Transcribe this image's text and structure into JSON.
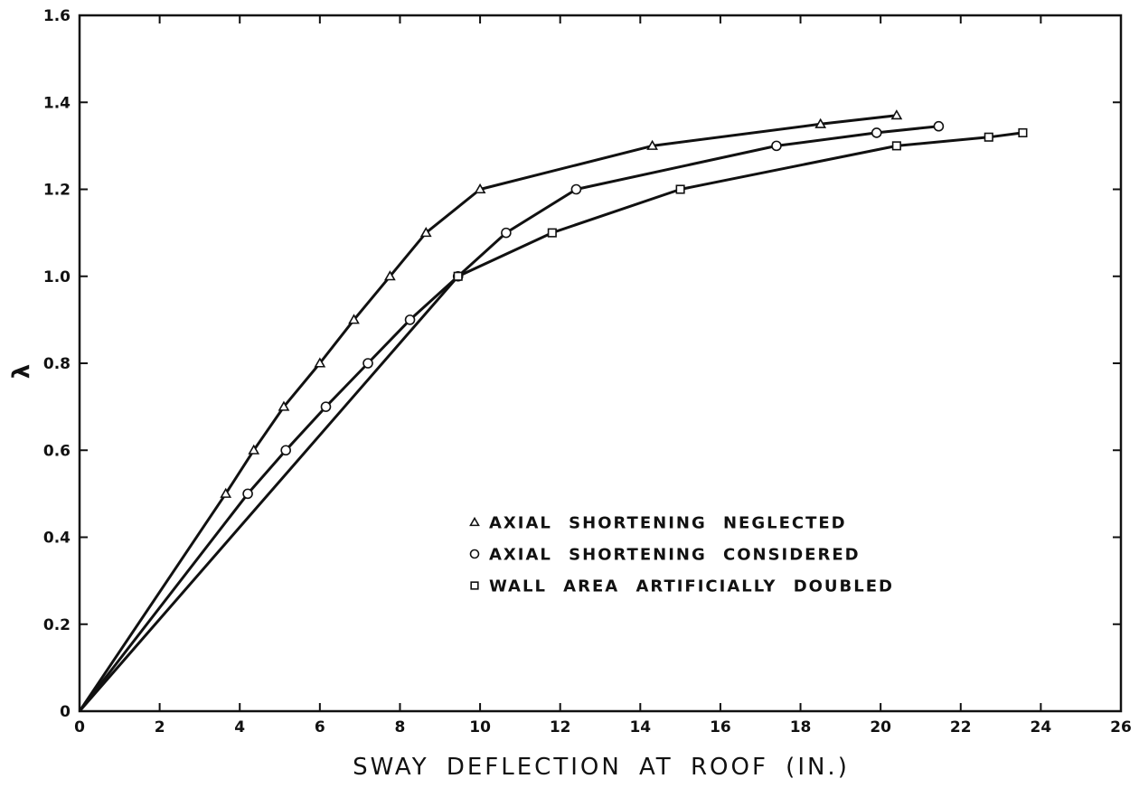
{
  "chart_data": {
    "type": "line",
    "title": "",
    "xlabel": "SWAY DEFLECTION AT ROOF (IN.)",
    "ylabel": "λ",
    "xlim": [
      0,
      26
    ],
    "ylim": [
      0,
      1.6
    ],
    "x_ticks": [
      0,
      2,
      4,
      6,
      8,
      10,
      12,
      14,
      16,
      18,
      20,
      22,
      24,
      26
    ],
    "x_tick_labels": [
      "0",
      "2",
      "4",
      "6",
      "8",
      "10",
      "12",
      "14",
      "16",
      "18",
      "20",
      "22",
      "24",
      "26"
    ],
    "y_ticks": [
      0,
      0.2,
      0.4,
      0.6,
      0.8,
      1.0,
      1.2,
      1.4,
      1.6
    ],
    "y_tick_labels": [
      "0",
      "0.2",
      "0.4",
      "0.6",
      "0.8",
      "1.0",
      "1.2",
      "1.4",
      "1.6"
    ],
    "grid": false,
    "legend_position": "center-right",
    "series": [
      {
        "name": "AXIAL SHORTENING NEGLECTED",
        "marker": "triangle",
        "x": [
          0,
          3.65,
          4.35,
          5.1,
          6.0,
          6.85,
          7.75,
          8.65,
          10.0,
          14.3,
          18.5,
          20.4
        ],
        "y": [
          0,
          0.5,
          0.6,
          0.7,
          0.8,
          0.9,
          1.0,
          1.1,
          1.2,
          1.3,
          1.35,
          1.37
        ]
      },
      {
        "name": "AXIAL SHORTENING CONSIDERED",
        "marker": "circle",
        "x": [
          0,
          4.2,
          5.15,
          6.15,
          7.2,
          8.25,
          9.45,
          10.65,
          12.4,
          17.4,
          19.9,
          21.45
        ],
        "y": [
          0,
          0.5,
          0.6,
          0.7,
          0.8,
          0.9,
          1.0,
          1.1,
          1.2,
          1.3,
          1.33,
          1.345
        ]
      },
      {
        "name": "WALL AREA ARTIFICIALLY DOUBLED",
        "marker": "square",
        "x": [
          0,
          9.45,
          11.8,
          15.0,
          20.4,
          22.7,
          23.55
        ],
        "y": [
          0,
          1.0,
          1.1,
          1.2,
          1.3,
          1.32,
          1.33
        ]
      }
    ]
  }
}
